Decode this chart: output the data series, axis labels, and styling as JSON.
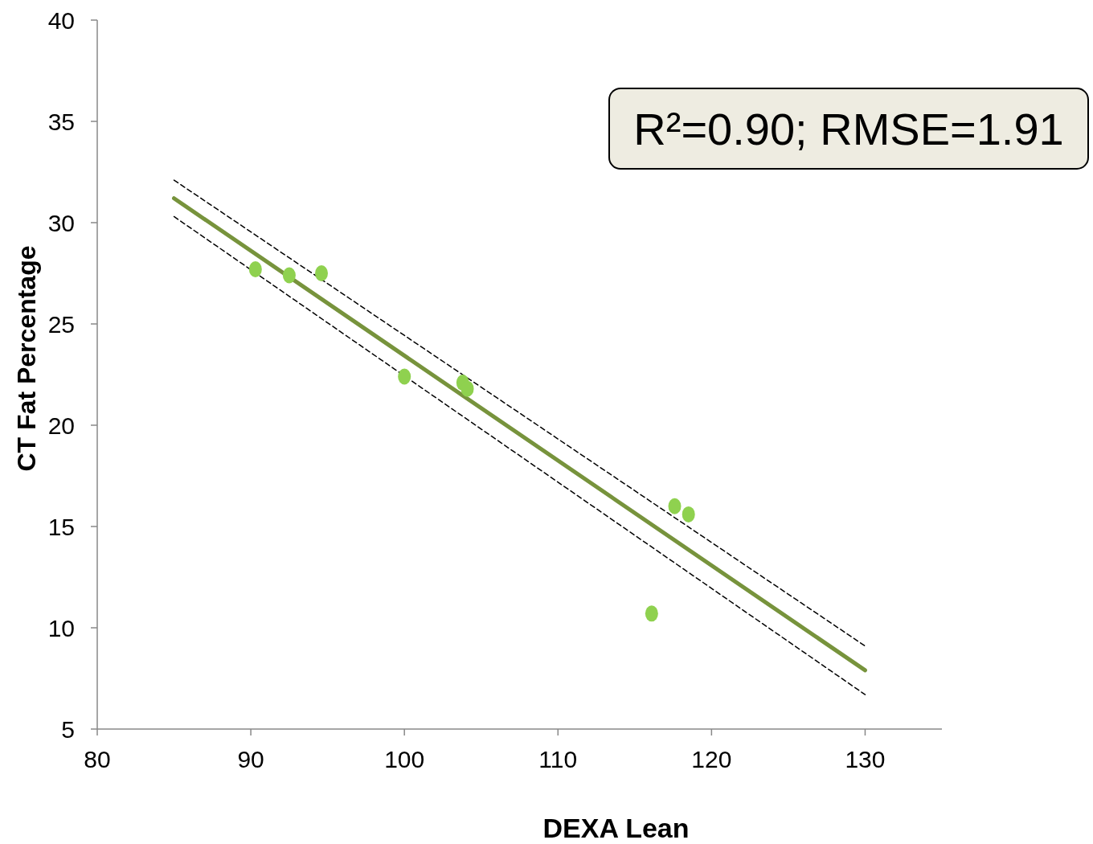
{
  "chart_data": {
    "type": "scatter",
    "xlabel": "DEXA Lean",
    "ylabel": "CT Fat Percentage",
    "xlim": [
      80,
      135
    ],
    "xticks": [
      80,
      90,
      100,
      110,
      120,
      130
    ],
    "ylim": [
      5,
      40
    ],
    "yticks": [
      5,
      10,
      15,
      20,
      25,
      30,
      35,
      40
    ],
    "grid": false,
    "annotations": [
      "R²=0.90; RMSE=1.91"
    ],
    "series": [
      {
        "color": "#8fd14f",
        "marker": "circle",
        "x": [
          90.3,
          92.5,
          94.6,
          100.0,
          103.8,
          104.1,
          116.1,
          117.6,
          118.5
        ],
        "values": [
          27.7,
          27.4,
          27.5,
          22.4,
          22.1,
          21.8,
          10.7,
          16.0,
          15.6
        ]
      },
      {
        "type": "line",
        "color": "#000000",
        "line_style": "dashed",
        "marker": "none",
        "x": [
          85,
          130
        ],
        "values": [
          32.1,
          9.1
        ]
      },
      {
        "type": "line",
        "color": "#000000",
        "line_style": "dashed",
        "marker": "none",
        "x": [
          85,
          130
        ],
        "values": [
          30.3,
          6.7
        ]
      },
      {
        "type": "line",
        "color": "#77933c",
        "line_style": "solid",
        "marker": "none",
        "x": [
          85,
          130
        ],
        "values": [
          31.2,
          7.9
        ]
      }
    ]
  }
}
